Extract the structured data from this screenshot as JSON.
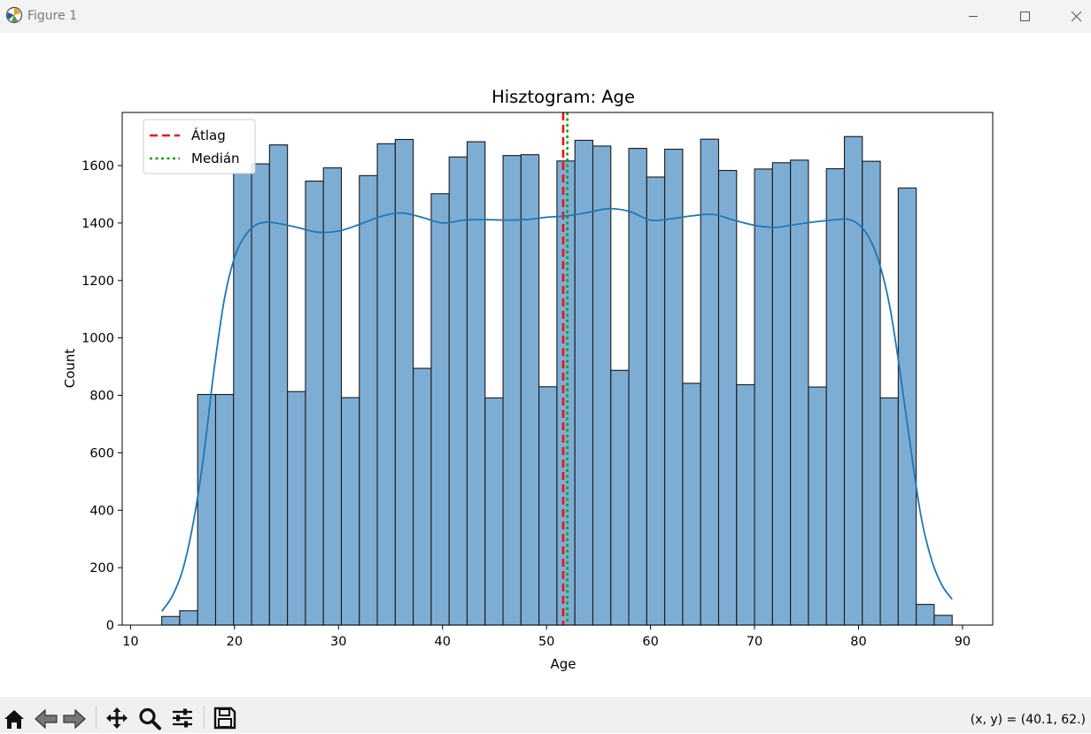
{
  "window": {
    "title": "Figure 1"
  },
  "toolbar": {
    "buttons": [
      "home-icon",
      "back-icon",
      "forward-icon",
      "pan-icon",
      "zoom-icon",
      "configure-subplots-icon",
      "save-icon"
    ],
    "coords": "(x, y) = (40.1, 62.)"
  },
  "chart_data": {
    "type": "bar",
    "title": "Hisztogram: Age",
    "xlabel": "Age",
    "ylabel": "Count",
    "xlim": [
      9.2,
      92.9
    ],
    "ylim": [
      0,
      1785
    ],
    "xticks": [
      10,
      20,
      30,
      40,
      50,
      60,
      70,
      80,
      90
    ],
    "yticks": [
      0,
      200,
      400,
      600,
      800,
      1000,
      1200,
      1400,
      1600
    ],
    "bin_start": 13,
    "bin_width": 1.7273,
    "values": [
      30,
      50,
      803,
      803,
      1573,
      1606,
      1672,
      813,
      1546,
      1592,
      792,
      1565,
      1676,
      1691,
      894,
      1502,
      1630,
      1683,
      791,
      1635,
      1638,
      830,
      1616,
      1688,
      1668,
      887,
      1660,
      1560,
      1657,
      842,
      1692,
      1583,
      837,
      1588,
      1610,
      1619,
      829,
      1589,
      1701,
      1615,
      791,
      1522,
      72,
      34
    ],
    "kde": {
      "x": [
        13,
        14,
        15,
        16,
        17,
        18,
        19,
        20,
        21,
        22,
        23,
        24,
        26,
        28,
        30,
        32,
        34,
        36,
        38,
        40,
        42,
        44,
        46,
        48,
        50,
        52,
        54,
        56,
        58,
        60,
        62,
        64,
        66,
        68,
        70,
        72,
        74,
        76,
        78,
        79,
        80,
        81,
        82,
        83,
        84,
        85,
        86,
        87,
        88,
        89
      ],
      "y": [
        48,
        100,
        190,
        350,
        580,
        880,
        1130,
        1280,
        1355,
        1392,
        1403,
        1400,
        1385,
        1368,
        1372,
        1395,
        1422,
        1435,
        1420,
        1400,
        1410,
        1412,
        1410,
        1412,
        1420,
        1425,
        1437,
        1450,
        1440,
        1410,
        1415,
        1425,
        1430,
        1410,
        1392,
        1385,
        1395,
        1405,
        1412,
        1413,
        1395,
        1350,
        1260,
        1110,
        880,
        620,
        380,
        230,
        140,
        90
      ]
    },
    "mean": 51.6,
    "median": 52.0,
    "legend": {
      "position": "upper left",
      "entries": [
        "Átlag",
        "Medián"
      ]
    },
    "colors": {
      "bar": "#7eadd4",
      "edge": "#1a1a1a",
      "kde": "#1f77b4",
      "mean": "#ee1111",
      "median": "#11a011"
    }
  }
}
